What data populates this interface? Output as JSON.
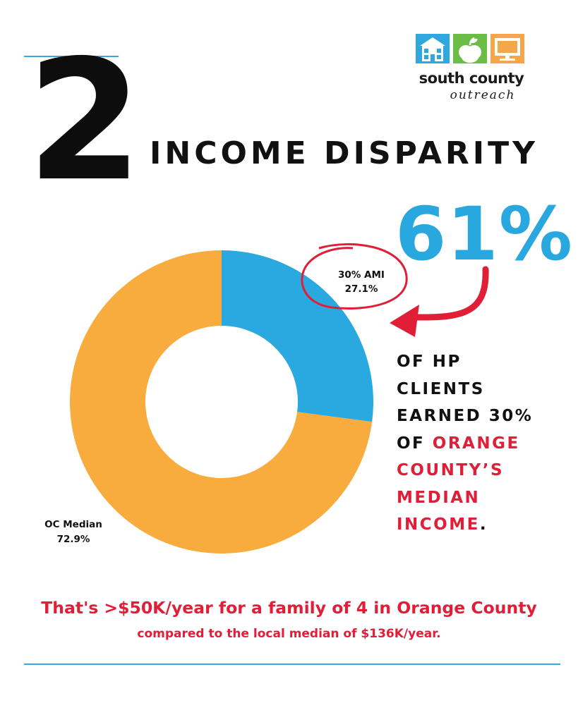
{
  "header": {
    "number": "2",
    "title": "INCOME DISPARITY"
  },
  "logo": {
    "line1": "south county",
    "line2": "outreach",
    "tile_colors": [
      "#2ea8de",
      "#6cbd45",
      "#f5a54a"
    ]
  },
  "stat": {
    "value": "61%",
    "line1": "OF HP",
    "line2": "CLIENTS",
    "line3": "EARNED 30%",
    "line4_prefix": "OF ",
    "line4_highlight": "ORANGE",
    "line5": "COUNTY’S",
    "line6": "MEDIAN",
    "line7": "INCOME",
    "line7_suffix": "."
  },
  "footer": {
    "line1": "That's >$50K/year for a family of 4 in Orange County",
    "line2": "compared to the local median of $136K/year."
  },
  "colors": {
    "accent_blue": "#29a8df",
    "accent_red": "#e01e37",
    "orange": "#f8ac3e",
    "rule": "#3aa8df"
  },
  "chart_data": {
    "type": "pie",
    "style": "donut",
    "slices": [
      {
        "label": "30% AMI",
        "value": 27.1,
        "display": "27.1%",
        "color": "#2aa9e0"
      },
      {
        "label": "OC Median",
        "value": 72.9,
        "display": "72.9%",
        "color": "#f8ac3e"
      }
    ],
    "legend": "none",
    "start": "top",
    "direction": "clockwise"
  }
}
